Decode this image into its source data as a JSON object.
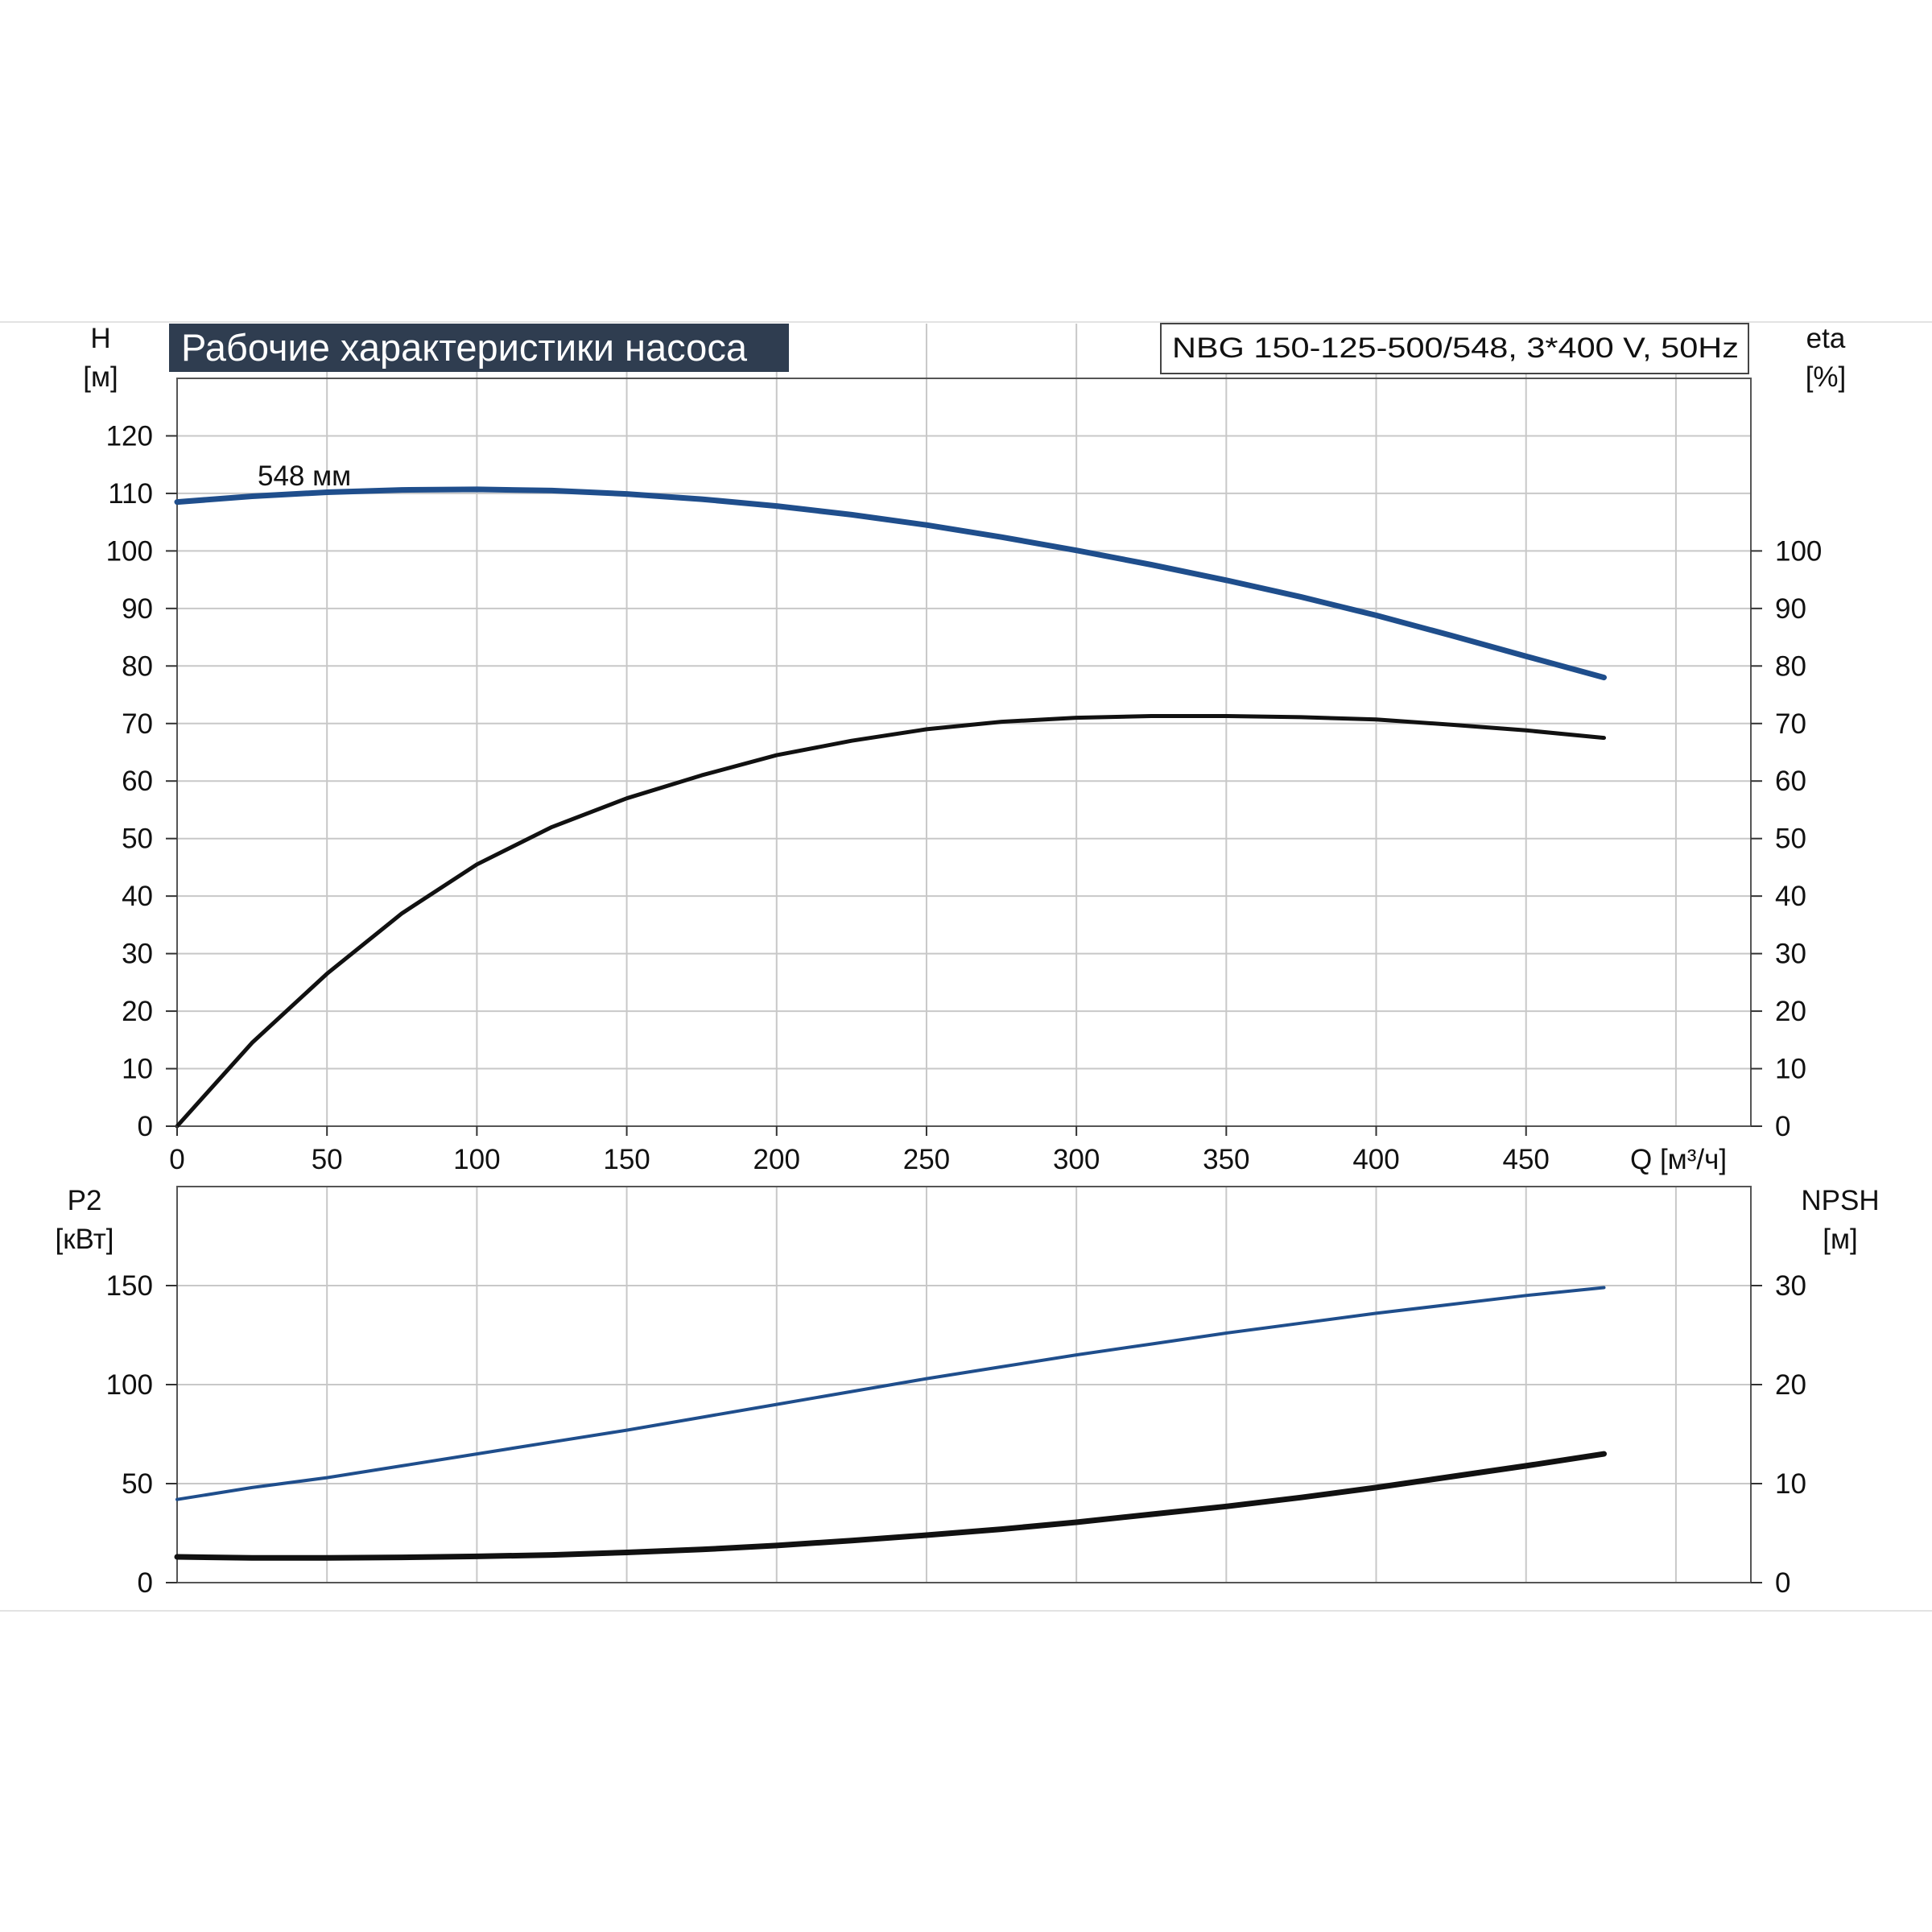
{
  "title": "Рабочие характеристики насоса",
  "model": "NBG 150-125-500/548, 3*400 V, 50Hz",
  "curve_label": "548 мм",
  "colors": {
    "blue": "#1f4e8c",
    "black": "#111111",
    "title_bg": "#2f3d50",
    "grid": "#c8c8c8"
  },
  "chart_data": [
    {
      "type": "line",
      "xlabel": "Q [м³/ч]",
      "ylabel_left": {
        "name": "H",
        "unit": "[м]"
      },
      "ylabel_right": {
        "name": "eta",
        "unit": "[%]"
      },
      "xlim": [
        0,
        525
      ],
      "ylim_left": [
        0,
        130
      ],
      "ylim_right": [
        0,
        130
      ],
      "x_ticks": [
        0,
        50,
        100,
        150,
        200,
        250,
        300,
        350,
        400,
        450
      ],
      "y_ticks_left": [
        0,
        10,
        20,
        30,
        40,
        50,
        60,
        70,
        80,
        90,
        100,
        110,
        120
      ],
      "y_ticks_right": [
        0,
        10,
        20,
        30,
        40,
        50,
        60,
        70,
        80,
        90,
        100
      ],
      "grid": true,
      "series": [
        {
          "name": "H",
          "axis": "left",
          "color": "#1f4e8c",
          "x": [
            0,
            25,
            50,
            75,
            100,
            125,
            150,
            175,
            200,
            225,
            250,
            275,
            300,
            325,
            350,
            375,
            400,
            425,
            450,
            476
          ],
          "y": [
            108.5,
            109.5,
            110.2,
            110.6,
            110.7,
            110.5,
            109.9,
            109.0,
            107.8,
            106.3,
            104.5,
            102.4,
            100.1,
            97.6,
            94.9,
            92.0,
            88.8,
            85.3,
            81.7,
            78.0
          ]
        },
        {
          "name": "eta",
          "axis": "right",
          "color": "#111111",
          "x": [
            0,
            25,
            50,
            75,
            100,
            125,
            150,
            175,
            200,
            225,
            250,
            275,
            300,
            325,
            350,
            375,
            400,
            425,
            450,
            476
          ],
          "y": [
            0,
            14.5,
            26.5,
            37,
            45.5,
            52,
            57,
            61,
            64.5,
            67,
            69,
            70.3,
            71,
            71.3,
            71.3,
            71.1,
            70.7,
            69.8,
            68.8,
            67.5
          ]
        }
      ]
    },
    {
      "type": "line",
      "xlabel": "",
      "ylabel_left": {
        "name": "P2",
        "unit": "[кВт]"
      },
      "ylabel_right": {
        "name": "NPSH",
        "unit": "[м]"
      },
      "xlim": [
        0,
        525
      ],
      "ylim_left": [
        0,
        200
      ],
      "ylim_right": [
        0,
        40
      ],
      "y_ticks_left": [
        0,
        50,
        100,
        150
      ],
      "y_ticks_right": [
        0,
        10,
        20,
        30
      ],
      "grid": true,
      "series": [
        {
          "name": "P2",
          "axis": "left",
          "color": "#1f4e8c",
          "x": [
            0,
            25,
            50,
            75,
            100,
            125,
            150,
            175,
            200,
            225,
            250,
            275,
            300,
            325,
            350,
            375,
            400,
            425,
            450,
            476
          ],
          "y": [
            42,
            48,
            53,
            59,
            65,
            71,
            77,
            83.5,
            90,
            96.5,
            103,
            109,
            115,
            120.5,
            126,
            131,
            136,
            140.5,
            145,
            149
          ]
        },
        {
          "name": "NPSH",
          "axis": "right",
          "color": "#111111",
          "x": [
            0,
            25,
            50,
            75,
            100,
            125,
            150,
            175,
            200,
            225,
            250,
            275,
            300,
            325,
            350,
            375,
            400,
            425,
            450,
            476
          ],
          "y": [
            2.6,
            2.5,
            2.5,
            2.55,
            2.65,
            2.8,
            3.05,
            3.35,
            3.75,
            4.25,
            4.8,
            5.4,
            6.1,
            6.9,
            7.7,
            8.6,
            9.6,
            10.7,
            11.8,
            13.0
          ]
        }
      ]
    }
  ]
}
